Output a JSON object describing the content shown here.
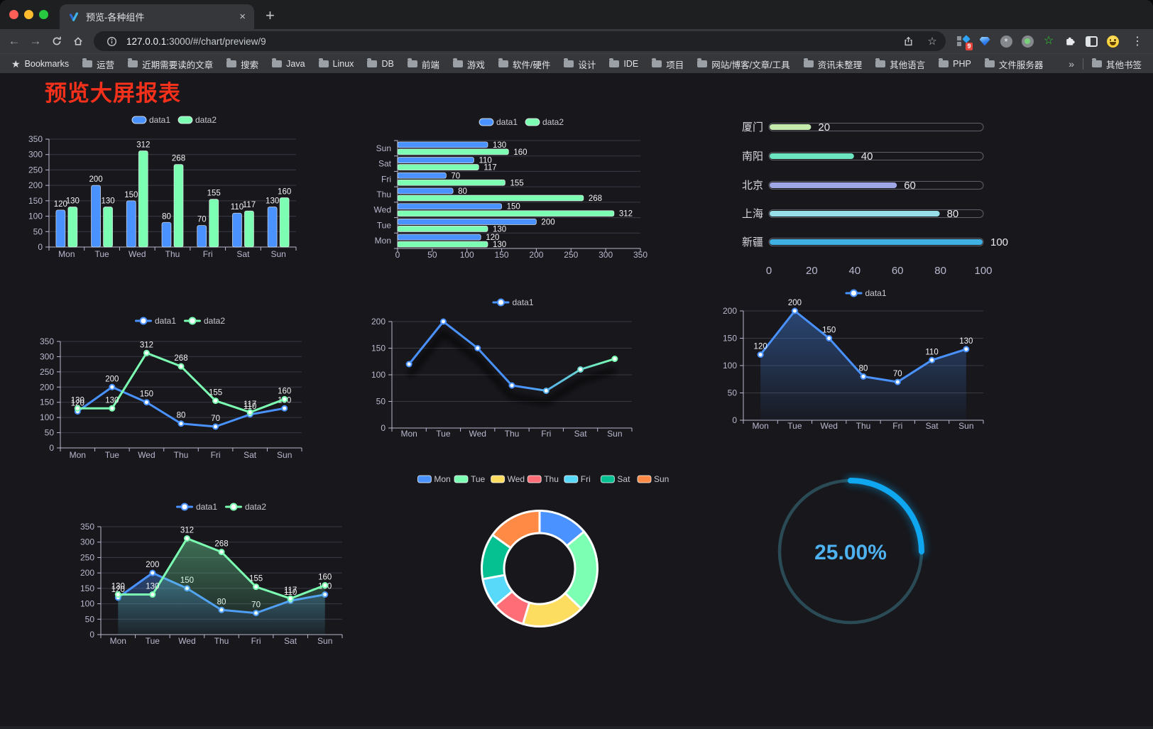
{
  "browser": {
    "tab_title": "预览-各种组件",
    "url_host": "127.0.0.1",
    "url_rest": ":3000/#/chart/preview/9",
    "extension_badge": "9",
    "bookmarks_label": "Bookmarks",
    "bookmark_folders": [
      "运营",
      "近期需要读的文章",
      "搜索",
      "Java",
      "Linux",
      "DB",
      "前端",
      "游戏",
      "软件/硬件",
      "设计",
      "IDE",
      "项目",
      "网站/博客/文章/工具",
      "资讯未整理",
      "其他语言",
      "PHP",
      "文件服务器"
    ],
    "other_bookmarks": "其他书签",
    "glyphs": {
      "close_tab": "×",
      "new_tab": "+",
      "menu": "⋮",
      "overflow": "»",
      "star": "☆",
      "bookmarks_star": "★",
      "back": "←",
      "forward": "→"
    }
  },
  "page": {
    "title": "预览大屏报表",
    "title_color": "#f5301b",
    "background": "#17171c"
  },
  "theme": {
    "axis_color": "#b9b8ce",
    "grid_color": "#393a44",
    "value_label_color": "#f2f2f3",
    "data1_color": "#4992ff",
    "data2_color": "#7cffb2"
  },
  "chart_data": [
    {
      "id": "bar-grouped",
      "type": "bar",
      "categories": [
        "Mon",
        "Tue",
        "Wed",
        "Thu",
        "Fri",
        "Sat",
        "Sun"
      ],
      "series": [
        {
          "name": "data1",
          "color": "#4992ff",
          "values": [
            120,
            200,
            150,
            80,
            70,
            110,
            130
          ]
        },
        {
          "name": "data2",
          "color": "#7cffb2",
          "values": [
            130,
            130,
            312,
            268,
            155,
            117,
            160
          ]
        }
      ],
      "ylim": [
        0,
        350
      ],
      "ystep": 50,
      "labels": true,
      "legend_position": "top"
    },
    {
      "id": "bar-horizontal",
      "type": "bar-horizontal",
      "categories": [
        "Mon",
        "Tue",
        "Wed",
        "Thu",
        "Fri",
        "Sat",
        "Sun"
      ],
      "series": [
        {
          "name": "data1",
          "color": "#4992ff",
          "values": [
            120,
            200,
            150,
            80,
            70,
            110,
            130
          ]
        },
        {
          "name": "data2",
          "color": "#7cffb2",
          "values": [
            130,
            130,
            312,
            268,
            155,
            117,
            160
          ]
        }
      ],
      "xlim": [
        0,
        350
      ],
      "xstep": 50,
      "labels": true,
      "legend_position": "top"
    },
    {
      "id": "progress",
      "type": "progress-bars",
      "categories": [
        "厦门",
        "南阳",
        "北京",
        "上海",
        "新疆"
      ],
      "values": [
        20,
        40,
        60,
        80,
        100
      ],
      "colors": [
        "#c4ebad",
        "#6be6c1",
        "#a0a7e6",
        "#96dee8",
        "#3fb1e3"
      ],
      "xticks": [
        0,
        20,
        40,
        60,
        80,
        100
      ],
      "xlim": [
        0,
        100
      ]
    },
    {
      "id": "line-two",
      "type": "line",
      "categories": [
        "Mon",
        "Tue",
        "Wed",
        "Thu",
        "Fri",
        "Sat",
        "Sun"
      ],
      "series": [
        {
          "name": "data1",
          "color": "#4992ff",
          "values": [
            120,
            200,
            150,
            80,
            70,
            110,
            130
          ]
        },
        {
          "name": "data2",
          "color": "#7cffb2",
          "values": [
            130,
            130,
            312,
            268,
            155,
            117,
            160
          ]
        }
      ],
      "ylim": [
        0,
        350
      ],
      "ystep": 50,
      "labels": true
    },
    {
      "id": "line-gradient",
      "type": "line",
      "categories": [
        "Mon",
        "Tue",
        "Wed",
        "Thu",
        "Fri",
        "Sat",
        "Sun"
      ],
      "series": [
        {
          "name": "data1",
          "gradient": [
            "#4992ff",
            "#7cffb2"
          ],
          "shadow": true,
          "values": [
            120,
            200,
            150,
            80,
            70,
            110,
            130
          ]
        }
      ],
      "ylim": [
        0,
        200
      ],
      "ystep": 50,
      "labels": false
    },
    {
      "id": "area-one",
      "type": "line",
      "categories": [
        "Mon",
        "Tue",
        "Wed",
        "Thu",
        "Fri",
        "Sat",
        "Sun"
      ],
      "series": [
        {
          "name": "data1",
          "color": "#4992ff",
          "area": true,
          "values": [
            120,
            200,
            150,
            80,
            70,
            110,
            130
          ]
        }
      ],
      "ylim": [
        0,
        200
      ],
      "ystep": 50,
      "labels": true
    },
    {
      "id": "area-two",
      "type": "line",
      "categories": [
        "Mon",
        "Tue",
        "Wed",
        "Thu",
        "Fri",
        "Sat",
        "Sun"
      ],
      "series": [
        {
          "name": "data1",
          "color": "#4992ff",
          "area": true,
          "values": [
            120,
            200,
            150,
            80,
            70,
            110,
            130
          ]
        },
        {
          "name": "data2",
          "color": "#7cffb2",
          "area": true,
          "values": [
            130,
            130,
            312,
            268,
            155,
            117,
            160
          ]
        }
      ],
      "ylim": [
        0,
        350
      ],
      "ystep": 50,
      "labels": true
    },
    {
      "id": "donut",
      "type": "pie",
      "categories": [
        "Mon",
        "Tue",
        "Wed",
        "Thu",
        "Fri",
        "Sat",
        "Sun"
      ],
      "values": [
        120,
        200,
        150,
        80,
        70,
        110,
        130
      ],
      "colors": [
        "#4992ff",
        "#7cffb2",
        "#fddd60",
        "#ff6e76",
        "#58d9f9",
        "#05c091",
        "#ff8a45"
      ],
      "inner_radius_ratio": 0.61
    },
    {
      "id": "gauge",
      "type": "gauge",
      "value": 25,
      "text": "25.00%",
      "track_color": "#2a4b55",
      "progress_color": "#0fa7f0",
      "text_color": "#4fb2f0"
    }
  ]
}
